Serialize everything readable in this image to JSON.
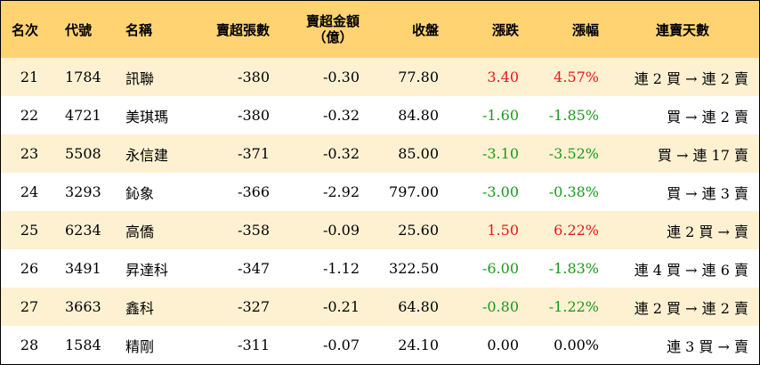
{
  "headers": {
    "rank": "名次",
    "code": "代號",
    "name": "名稱",
    "net_sell_lots": "賣超張數",
    "net_sell_amount_line1": "賣超金額",
    "net_sell_amount_line2": "（億）",
    "close": "收盤",
    "change": "漲跌",
    "change_pct": "漲幅",
    "consecutive_days": "連賣天數"
  },
  "colors": {
    "header_bg": "#ffd372",
    "stripe_bg": "#fdf1d2",
    "up": "#e8171b",
    "down": "#1a9a1a"
  },
  "rows": [
    {
      "rank": "21",
      "code": "1784",
      "name": "訊聯",
      "lots": "-380",
      "amount": "-0.30",
      "close": "77.80",
      "change": "3.40",
      "pct": "4.57%",
      "days": "連 2 買 → 連 2 賣",
      "dir": "up"
    },
    {
      "rank": "22",
      "code": "4721",
      "name": "美琪瑪",
      "lots": "-380",
      "amount": "-0.32",
      "close": "84.80",
      "change": "-1.60",
      "pct": "-1.85%",
      "days": "買 → 連 2 賣",
      "dir": "down"
    },
    {
      "rank": "23",
      "code": "5508",
      "name": "永信建",
      "lots": "-371",
      "amount": "-0.32",
      "close": "85.00",
      "change": "-3.10",
      "pct": "-3.52%",
      "days": "買 → 連 17 賣",
      "dir": "down"
    },
    {
      "rank": "24",
      "code": "3293",
      "name": "鈊象",
      "lots": "-366",
      "amount": "-2.92",
      "close": "797.00",
      "change": "-3.00",
      "pct": "-0.38%",
      "days": "買 → 連 3 賣",
      "dir": "down"
    },
    {
      "rank": "25",
      "code": "6234",
      "name": "高僑",
      "lots": "-358",
      "amount": "-0.09",
      "close": "25.60",
      "change": "1.50",
      "pct": "6.22%",
      "days": "連 2 買 → 賣",
      "dir": "up"
    },
    {
      "rank": "26",
      "code": "3491",
      "name": "昇達科",
      "lots": "-347",
      "amount": "-1.12",
      "close": "322.50",
      "change": "-6.00",
      "pct": "-1.83%",
      "days": "連 4 買 → 連 6 賣",
      "dir": "down"
    },
    {
      "rank": "27",
      "code": "3663",
      "name": "鑫科",
      "lots": "-327",
      "amount": "-0.21",
      "close": "64.80",
      "change": "-0.80",
      "pct": "-1.22%",
      "days": "連 2 買 → 連 2 賣",
      "dir": "down"
    },
    {
      "rank": "28",
      "code": "1584",
      "name": "精剛",
      "lots": "-311",
      "amount": "-0.07",
      "close": "24.10",
      "change": "0.00",
      "pct": "0.00%",
      "days": "連 3 買 → 賣",
      "dir": "flat"
    }
  ]
}
